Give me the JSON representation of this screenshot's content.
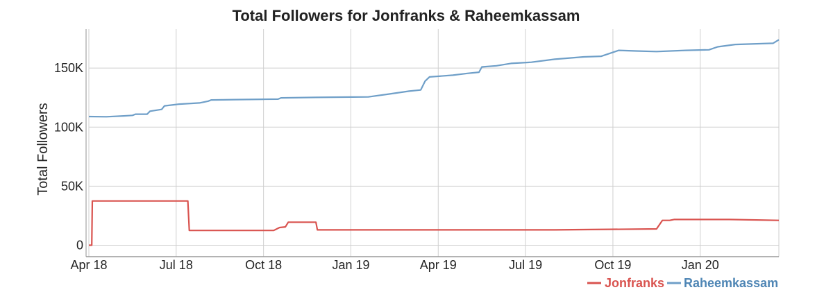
{
  "chart_data": {
    "type": "line",
    "title": "Total Followers for Jonfranks & Raheemkassam",
    "xlabel": "",
    "ylabel": "Total Followers",
    "x_ticks": [
      "Apr 18",
      "Jul 18",
      "Oct 18",
      "Jan 19",
      "Apr 19",
      "Jul 19",
      "Oct 19",
      "Jan 20"
    ],
    "y_ticks": [
      "0",
      "50K",
      "100K",
      "150K"
    ],
    "y_tick_values": [
      0,
      50000,
      100000,
      150000
    ],
    "xlim": [
      0,
      23.7
    ],
    "ylim": [
      -5000,
      183000
    ],
    "x_unit": "months since Apr 18",
    "legend_position": "bottom-right",
    "series": [
      {
        "name": "Jonfranks",
        "color": "#d9534f",
        "points": [
          [
            0,
            0
          ],
          [
            0.1,
            0
          ],
          [
            0.12,
            37500
          ],
          [
            3.4,
            37500
          ],
          [
            3.45,
            12500
          ],
          [
            6.35,
            12500
          ],
          [
            6.55,
            15000
          ],
          [
            6.75,
            15500
          ],
          [
            6.85,
            19500
          ],
          [
            7.8,
            19500
          ],
          [
            7.85,
            13000
          ],
          [
            12,
            13000
          ],
          [
            16,
            13000
          ],
          [
            19.5,
            13800
          ],
          [
            19.7,
            21000
          ],
          [
            19.95,
            21000
          ],
          [
            20.1,
            21800
          ],
          [
            22,
            21800
          ],
          [
            23.7,
            21000
          ]
        ]
      },
      {
        "name": "Raheemkassam",
        "color": "#6f9fc8",
        "points": [
          [
            0,
            109000
          ],
          [
            0.6,
            108800
          ],
          [
            1.2,
            109500
          ],
          [
            1.5,
            110000
          ],
          [
            1.6,
            111000
          ],
          [
            2.0,
            111000
          ],
          [
            2.1,
            113500
          ],
          [
            2.5,
            115000
          ],
          [
            2.6,
            118000
          ],
          [
            3.1,
            119500
          ],
          [
            3.8,
            120500
          ],
          [
            4.1,
            122000
          ],
          [
            4.2,
            123000
          ],
          [
            5.0,
            123300
          ],
          [
            6.0,
            123600
          ],
          [
            6.5,
            123700
          ],
          [
            6.6,
            124800
          ],
          [
            7.8,
            125200
          ],
          [
            9.0,
            125500
          ],
          [
            9.6,
            125600
          ],
          [
            10.3,
            128000
          ],
          [
            11.0,
            130500
          ],
          [
            11.4,
            131500
          ],
          [
            11.55,
            139000
          ],
          [
            11.7,
            142500
          ],
          [
            12.5,
            144000
          ],
          [
            13.0,
            145500
          ],
          [
            13.4,
            146500
          ],
          [
            13.5,
            151000
          ],
          [
            14.0,
            152000
          ],
          [
            14.5,
            154000
          ],
          [
            15.2,
            155000
          ],
          [
            16.0,
            157500
          ],
          [
            17.0,
            159500
          ],
          [
            17.6,
            160000
          ],
          [
            18.2,
            165000
          ],
          [
            18.8,
            164500
          ],
          [
            19.5,
            164000
          ],
          [
            20.5,
            165000
          ],
          [
            21.3,
            165500
          ],
          [
            21.6,
            168000
          ],
          [
            22.2,
            170000
          ],
          [
            23.5,
            171000
          ],
          [
            23.7,
            174000
          ]
        ]
      }
    ]
  }
}
